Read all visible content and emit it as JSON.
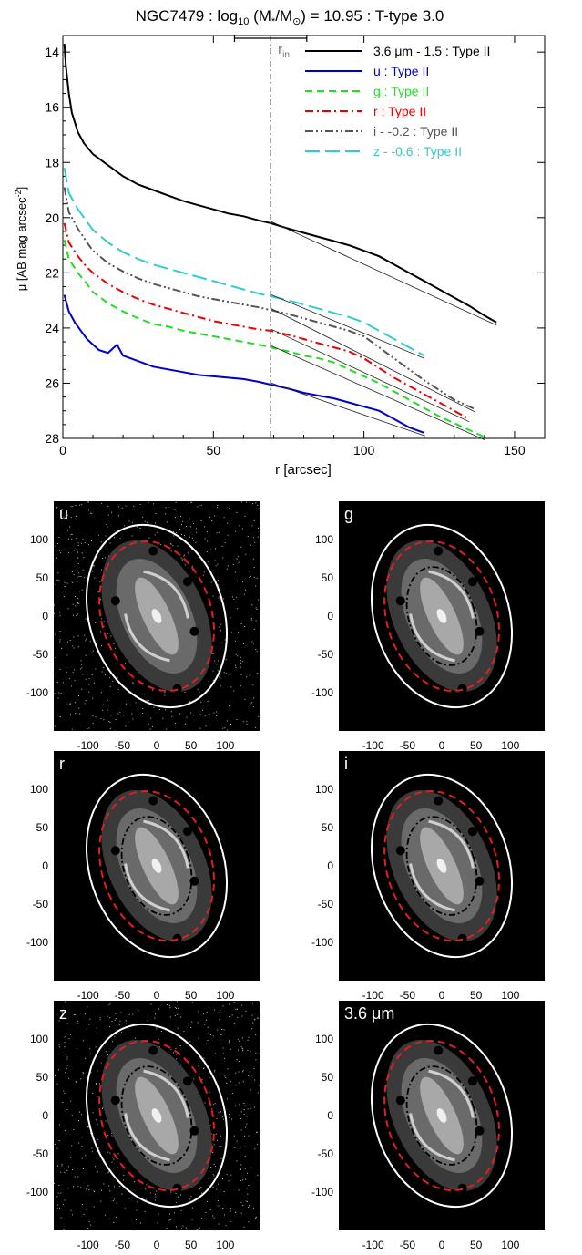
{
  "figure": {
    "title_prefix": "NGC7479 : log",
    "title_sub": "10",
    "title_mid": " (M",
    "title_star": "*",
    "title_slash": "/M",
    "title_sun": "⊙",
    "title_suffix": ") = 10.95 : T-type 3.0"
  },
  "chart_data": [
    {
      "type": "line",
      "title": "NGC7479 : log10 (M*/M⊙) = 10.95 : T-type 3.0",
      "xlabel": "r [arcsec]",
      "ylabel_main": "μ [AB mag arcsec",
      "ylabel_sup": "-2",
      "ylabel_end": "]",
      "xlim": [
        0,
        160
      ],
      "ylim": [
        28,
        13.4
      ],
      "y_inverted": true,
      "xticks": [
        0,
        50,
        100,
        150
      ],
      "yticks": [
        14,
        16,
        18,
        20,
        22,
        24,
        26,
        28
      ],
      "grid": false,
      "legend_position": "top-right",
      "r_in": {
        "label": "r",
        "sub": "in",
        "value": 69,
        "range": [
          57,
          81
        ]
      },
      "series": [
        {
          "name": "3.6 μm - 1.5 : Type II",
          "color": "#000000",
          "dash": "solid",
          "x": [
            0.5,
            1,
            2,
            3,
            5,
            7,
            10,
            15,
            20,
            25,
            30,
            35,
            40,
            45,
            50,
            55,
            60,
            65,
            69,
            75,
            80,
            85,
            90,
            95,
            100,
            105,
            110,
            115,
            120,
            125,
            130,
            135,
            140,
            144
          ],
          "y": [
            13.7,
            14.5,
            15.5,
            16.2,
            16.9,
            17.3,
            17.7,
            18.1,
            18.5,
            18.8,
            19.0,
            19.2,
            19.4,
            19.55,
            19.7,
            19.85,
            19.95,
            20.1,
            20.2,
            20.4,
            20.55,
            20.7,
            20.85,
            21.0,
            21.2,
            21.4,
            21.7,
            22.0,
            22.3,
            22.6,
            22.9,
            23.2,
            23.55,
            23.8
          ]
        },
        {
          "name": "u : Type II",
          "color": "#0000cc",
          "dash": "solid",
          "x": [
            0.5,
            2,
            4,
            6,
            8,
            10,
            12,
            15,
            18,
            20,
            25,
            30,
            35,
            40,
            45,
            50,
            55,
            60,
            65,
            69,
            75,
            80,
            85,
            90,
            95,
            100,
            105,
            110,
            115,
            120
          ],
          "y": [
            22.8,
            23.4,
            23.8,
            24.1,
            24.4,
            24.6,
            24.8,
            24.9,
            24.6,
            25.0,
            25.2,
            25.4,
            25.5,
            25.6,
            25.7,
            25.75,
            25.8,
            25.85,
            25.95,
            26.05,
            26.2,
            26.35,
            26.45,
            26.55,
            26.7,
            26.85,
            27.0,
            27.3,
            27.6,
            27.8
          ]
        },
        {
          "name": "g : Type II",
          "color": "#22dd22",
          "dash": "dashed",
          "x": [
            0.5,
            2,
            5,
            8,
            10,
            15,
            20,
            25,
            30,
            35,
            40,
            45,
            50,
            55,
            60,
            65,
            69,
            75,
            80,
            85,
            90,
            95,
            100,
            105,
            110,
            115,
            120,
            125,
            130,
            135,
            140
          ],
          "y": [
            20.8,
            21.5,
            22.0,
            22.4,
            22.7,
            23.1,
            23.4,
            23.65,
            23.85,
            23.95,
            24.1,
            24.2,
            24.3,
            24.4,
            24.5,
            24.6,
            24.7,
            24.85,
            25.0,
            25.1,
            25.25,
            25.5,
            25.75,
            26.0,
            26.3,
            26.6,
            26.9,
            27.2,
            27.45,
            27.7,
            27.95
          ]
        },
        {
          "name": "r : Type II",
          "color": "#ee0000",
          "dash": "dashdot",
          "x": [
            0.5,
            2,
            5,
            8,
            10,
            15,
            20,
            25,
            30,
            35,
            40,
            45,
            50,
            55,
            60,
            65,
            69,
            75,
            80,
            85,
            90,
            95,
            100,
            105,
            110,
            115,
            120,
            125,
            130,
            135
          ],
          "y": [
            20.2,
            20.9,
            21.4,
            21.8,
            22.0,
            22.4,
            22.7,
            22.95,
            23.15,
            23.3,
            23.45,
            23.6,
            23.75,
            23.85,
            23.95,
            24.05,
            24.1,
            24.25,
            24.4,
            24.55,
            24.7,
            24.85,
            25.1,
            25.45,
            25.8,
            26.1,
            26.4,
            26.7,
            27.0,
            27.3
          ]
        },
        {
          "name": "i - -0.2 : Type II",
          "color": "#555555",
          "dash": "dashdotdot",
          "x": [
            0.5,
            2,
            5,
            8,
            10,
            15,
            20,
            25,
            30,
            35,
            40,
            45,
            50,
            55,
            60,
            65,
            69,
            75,
            80,
            85,
            90,
            95,
            100,
            105,
            110,
            115,
            120,
            125,
            130,
            137
          ],
          "y": [
            18.9,
            19.8,
            20.4,
            20.9,
            21.2,
            21.65,
            21.95,
            22.2,
            22.4,
            22.55,
            22.7,
            22.85,
            22.95,
            23.05,
            23.15,
            23.25,
            23.35,
            23.5,
            23.65,
            23.8,
            23.95,
            24.1,
            24.3,
            24.7,
            25.1,
            25.5,
            25.9,
            26.25,
            26.6,
            26.95
          ]
        },
        {
          "name": "z - -0.6 : Type II",
          "color": "#33cccc",
          "dash": "longdash",
          "x": [
            0.5,
            2,
            5,
            8,
            10,
            15,
            20,
            25,
            30,
            35,
            40,
            45,
            50,
            55,
            60,
            65,
            69,
            75,
            80,
            85,
            90,
            95,
            100,
            105,
            110,
            115,
            120
          ],
          "y": [
            18.2,
            19.1,
            19.7,
            20.15,
            20.45,
            20.9,
            21.25,
            21.5,
            21.7,
            21.85,
            22.0,
            22.15,
            22.3,
            22.45,
            22.6,
            22.75,
            22.85,
            23.0,
            23.15,
            23.3,
            23.45,
            23.6,
            23.8,
            24.1,
            24.4,
            24.7,
            25.0
          ]
        }
      ]
    },
    {
      "type": "other",
      "panels": [
        {
          "label": "u",
          "xticks": [
            "-100",
            "-50",
            "0",
            "50",
            "100"
          ],
          "yticks": [
            "100",
            "50",
            "0",
            "-50",
            "-100"
          ],
          "inner_ring": false,
          "scatter_bg": true
        },
        {
          "label": "g",
          "xticks": [
            "-100",
            "-50",
            "0",
            "50",
            "100"
          ],
          "yticks": [
            "100",
            "50",
            "0",
            "-50",
            "-100"
          ],
          "inner_ring": true,
          "scatter_bg": false
        },
        {
          "label": "r",
          "xticks": [
            "-100",
            "-50",
            "0",
            "50",
            "100"
          ],
          "yticks": [
            "100",
            "50",
            "0",
            "-50",
            "-100"
          ],
          "inner_ring": true,
          "scatter_bg": false
        },
        {
          "label": "i",
          "xticks": [
            "-100",
            "-50",
            "0",
            "50",
            "100"
          ],
          "yticks": [
            "100",
            "50",
            "0",
            "-50",
            "-100"
          ],
          "inner_ring": true,
          "scatter_bg": false
        },
        {
          "label": "z",
          "xticks": [
            "-100",
            "-50",
            "0",
            "50",
            "100"
          ],
          "yticks": [
            "100",
            "50",
            "0",
            "-50",
            "-100"
          ],
          "inner_ring": true,
          "scatter_bg": true
        },
        {
          "label": "3.6 μm",
          "xticks": [
            "-100",
            "-50",
            "0",
            "50",
            "100"
          ],
          "yticks": [
            "100",
            "50",
            "0",
            "-50",
            "-100"
          ],
          "inner_ring": true,
          "scatter_bg": false
        }
      ]
    }
  ]
}
